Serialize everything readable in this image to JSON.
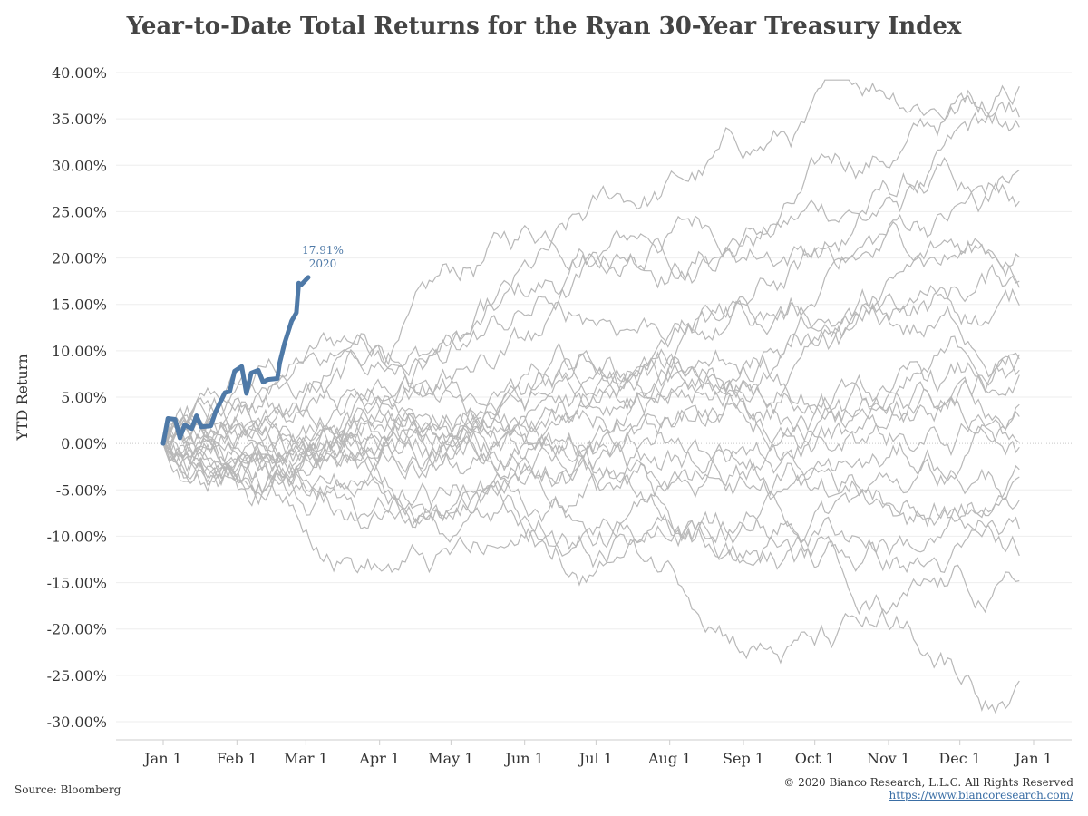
{
  "chart_data": {
    "type": "line",
    "title": "Year-to-Date Total Returns for the Ryan 30-Year Treasury Index",
    "ylabel": "YTD Return",
    "xlabel": "",
    "ylim": [
      -30,
      40
    ],
    "y_ticks": [
      "40.00%",
      "35.00%",
      "30.00%",
      "25.00%",
      "20.00%",
      "15.00%",
      "10.00%",
      "5.00%",
      "0.00%",
      "-5.00%",
      "-10.00%",
      "-15.00%",
      "-20.00%",
      "-25.00%",
      "-30.00%"
    ],
    "x_ticks": [
      "Jan 1",
      "Feb 1",
      "Mar 1",
      "Apr 1",
      "May 1",
      "Jun 1",
      "Jul 1",
      "Aug 1",
      "Sep 1",
      "Oct 1",
      "Nov 1",
      "Dec 1",
      "Jan 1"
    ],
    "colors": {
      "highlight": "#4e79a7",
      "history": "#b8b8b8",
      "grid": "#eeeeee"
    },
    "historical_series_endpoints": [
      38.5,
      35.2,
      34.1,
      29.5,
      26.1,
      20.1,
      17.5,
      16.8,
      14.9,
      9.6,
      9.1,
      7.9,
      7.4,
      4.2,
      2.9,
      0.1,
      -0.4,
      -2.8,
      -3.6,
      -6.1,
      -9.2,
      -12.1,
      -14.8,
      -25.6
    ],
    "highlight_series": {
      "name": "2020",
      "end_label": "17.91%",
      "points": [
        [
          "Jan 1",
          0.0
        ],
        [
          "Jan 3",
          2.7
        ],
        [
          "Jan 6",
          2.6
        ],
        [
          "Jan 8",
          0.6
        ],
        [
          "Jan 10",
          2.0
        ],
        [
          "Jan 13",
          1.6
        ],
        [
          "Jan 15",
          3.0
        ],
        [
          "Jan 17",
          1.8
        ],
        [
          "Jan 21",
          1.9
        ],
        [
          "Jan 23",
          3.4
        ],
        [
          "Jan 27",
          5.5
        ],
        [
          "Jan 29",
          5.6
        ],
        [
          "Jan 31",
          7.8
        ],
        [
          "Feb 3",
          8.3
        ],
        [
          "Feb 5",
          5.4
        ],
        [
          "Feb 7",
          7.6
        ],
        [
          "Feb 10",
          7.9
        ],
        [
          "Feb 12",
          6.6
        ],
        [
          "Feb 14",
          6.9
        ],
        [
          "Feb 18",
          7.0
        ],
        [
          "Feb 19",
          8.7
        ],
        [
          "Feb 21",
          10.8
        ],
        [
          "Feb 24",
          13.2
        ],
        [
          "Feb 26",
          14.1
        ],
        [
          "Feb 27",
          17.3
        ],
        [
          "Feb 28",
          17.1
        ],
        [
          "Mar 2",
          17.91
        ]
      ]
    }
  },
  "footer": {
    "source": "Source: Bloomberg",
    "copyright": "© 2020 Bianco Research, L.L.C. All Rights Reserved",
    "url": "https://www.biancoresearch.com/"
  }
}
